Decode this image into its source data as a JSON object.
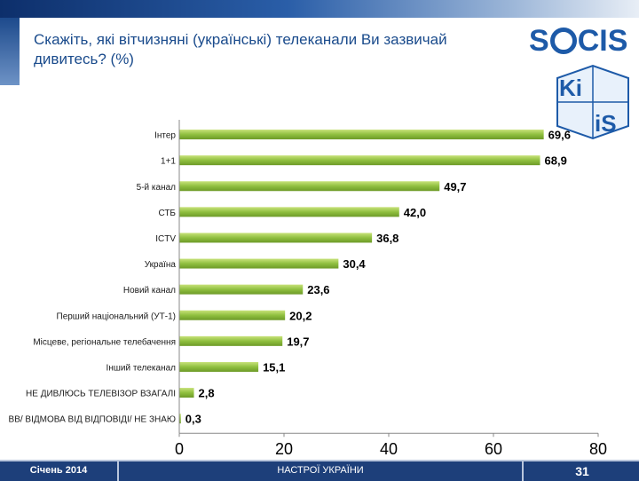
{
  "header": {
    "title": "Скажіть, які вітчизняні (українські) телеканали Ви зазвичай дивитесь? (%)"
  },
  "logos": {
    "socis_prefix": "S",
    "socis_suffix": "CIS",
    "kiis_top": "Ki",
    "kiis_bottom": "iS"
  },
  "footer": {
    "date": "Січень 2014",
    "center": "НАСТРОЇ УКРАЇНИ",
    "page": "31"
  },
  "colors": {
    "bar": "#8fbf3f",
    "bar_light": "#c8e27a",
    "bar_dark": "#6d9a28",
    "title": "#1a4b8c",
    "footer": "#1d3f7a"
  },
  "chart_data": {
    "type": "bar",
    "orientation": "horizontal",
    "categories": [
      "Інтер",
      "1+1",
      "5-й канал",
      "СТБ",
      "ICTV",
      "Україна",
      "Новий канал",
      "Перший національний (УТ-1)",
      "Місцеве, регіональне телебачення",
      "Інший телеканал",
      "НЕ ДИВЛЮСЬ ТЕЛЕВІЗОР ВЗАГАЛІ",
      "ВВ/ ВІДМОВА ВІД ВІДПОВІДІ/ НЕ ЗНАЮ"
    ],
    "values": [
      69.6,
      68.9,
      49.7,
      42.0,
      36.8,
      30.4,
      23.6,
      20.2,
      19.7,
      15.1,
      2.8,
      0.3
    ],
    "labels": [
      "69,6",
      "68,9",
      "49,7",
      "42,0",
      "36,8",
      "30,4",
      "23,6",
      "20,2",
      "19,7",
      "15,1",
      "2,8",
      "0,3"
    ],
    "xlim": [
      0,
      80
    ],
    "xticks": [
      "0",
      "20",
      "40",
      "60",
      "80"
    ],
    "title": "Скажіть, які вітчизняні (українські) телеканали Ви зазвичай дивитесь? (%)",
    "xlabel": "",
    "ylabel": ""
  }
}
